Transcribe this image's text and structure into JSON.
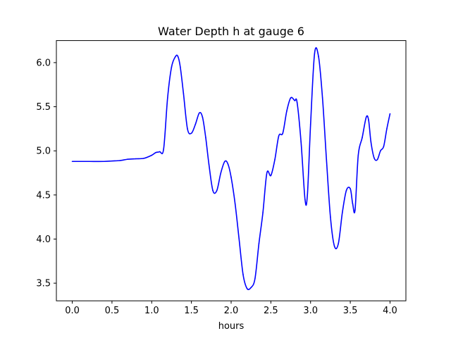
{
  "chart_data": {
    "type": "line",
    "title": "Water Depth h at gauge 6",
    "xlabel": "hours",
    "ylabel": "",
    "xlim": [
      -0.2,
      4.2
    ],
    "ylim": [
      3.3,
      6.25
    ],
    "x_ticks": [
      0.0,
      0.5,
      1.0,
      1.5,
      2.0,
      2.5,
      3.0,
      3.5,
      4.0
    ],
    "x_tick_labels": [
      "0.0",
      "0.5",
      "1.0",
      "1.5",
      "2.0",
      "2.5",
      "3.0",
      "3.5",
      "4.0"
    ],
    "y_ticks": [
      3.5,
      4.0,
      4.5,
      5.0,
      5.5,
      6.0
    ],
    "y_tick_labels": [
      "3.5",
      "4.0",
      "4.5",
      "5.0",
      "5.5",
      "6.0"
    ],
    "grid": false,
    "legend": "none",
    "series": [
      {
        "color": "#0000ff",
        "x": [
          0.0,
          0.2,
          0.4,
          0.5,
          0.6,
          0.7,
          0.8,
          0.9,
          1.0,
          1.05,
          1.1,
          1.15,
          1.2,
          1.25,
          1.3,
          1.33,
          1.36,
          1.4,
          1.45,
          1.5,
          1.55,
          1.6,
          1.64,
          1.68,
          1.72,
          1.77,
          1.82,
          1.87,
          1.92,
          1.96,
          2.0,
          2.05,
          2.1,
          2.15,
          2.2,
          2.25,
          2.3,
          2.35,
          2.4,
          2.45,
          2.5,
          2.55,
          2.6,
          2.65,
          2.7,
          2.75,
          2.8,
          2.83,
          2.88,
          2.93,
          2.96,
          3.0,
          3.05,
          3.1,
          3.15,
          3.2,
          3.25,
          3.3,
          3.35,
          3.4,
          3.45,
          3.5,
          3.53,
          3.56,
          3.6,
          3.65,
          3.7,
          3.73,
          3.76,
          3.8,
          3.84,
          3.88,
          3.92,
          3.96,
          4.0
        ],
        "y": [
          4.88,
          4.88,
          4.88,
          4.885,
          4.89,
          4.905,
          4.91,
          4.915,
          4.95,
          4.98,
          4.99,
          5.02,
          5.6,
          5.95,
          6.07,
          6.07,
          5.95,
          5.65,
          5.25,
          5.2,
          5.3,
          5.43,
          5.38,
          5.15,
          4.85,
          4.55,
          4.55,
          4.75,
          4.88,
          4.85,
          4.7,
          4.4,
          4.0,
          3.6,
          3.44,
          3.45,
          3.55,
          3.95,
          4.3,
          4.75,
          4.72,
          4.9,
          5.17,
          5.2,
          5.45,
          5.6,
          5.57,
          5.55,
          5.1,
          4.45,
          4.5,
          5.3,
          6.1,
          6.07,
          5.6,
          4.9,
          4.25,
          3.92,
          3.95,
          4.3,
          4.55,
          4.57,
          4.4,
          4.33,
          4.95,
          5.15,
          5.38,
          5.35,
          5.1,
          4.92,
          4.9,
          5.0,
          5.05,
          5.25,
          5.42
        ]
      }
    ]
  }
}
